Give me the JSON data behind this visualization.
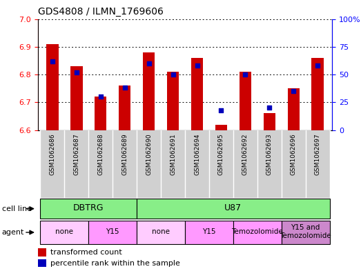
{
  "title": "GDS4808 / ILMN_1769606",
  "samples": [
    "GSM1062686",
    "GSM1062687",
    "GSM1062688",
    "GSM1062689",
    "GSM1062690",
    "GSM1062691",
    "GSM1062694",
    "GSM1062695",
    "GSM1062692",
    "GSM1062693",
    "GSM1062696",
    "GSM1062697"
  ],
  "red_values": [
    6.91,
    6.83,
    6.72,
    6.76,
    6.88,
    6.81,
    6.86,
    6.62,
    6.81,
    6.66,
    6.75,
    6.86
  ],
  "blue_values_pct": [
    62,
    52,
    30,
    38,
    60,
    50,
    58,
    18,
    50,
    20,
    35,
    58
  ],
  "ymin": 6.6,
  "ymax": 7.0,
  "yticks_left": [
    6.6,
    6.7,
    6.8,
    6.9,
    7.0
  ],
  "yticks_right": [
    0,
    25,
    50,
    75,
    100
  ],
  "bar_color": "#cc0000",
  "marker_color": "#0000bb",
  "bar_width": 0.5,
  "cell_line_color": "#88ee88",
  "agent_none_color": "#ffccff",
  "agent_y15_color": "#ff99ff",
  "agent_temo_color": "#ff99ff",
  "agent_combo_color": "#cc88cc",
  "legend_red": "transformed count",
  "legend_blue": "percentile rank within the sample",
  "cell_line_groups": [
    {
      "label": "DBTRG",
      "start": 0,
      "end": 3
    },
    {
      "label": "U87",
      "start": 4,
      "end": 11
    }
  ],
  "agent_groups": [
    {
      "label": "none",
      "start": 0,
      "end": 1,
      "color_key": "agent_none_color"
    },
    {
      "label": "Y15",
      "start": 2,
      "end": 3,
      "color_key": "agent_y15_color"
    },
    {
      "label": "none",
      "start": 4,
      "end": 5,
      "color_key": "agent_none_color"
    },
    {
      "label": "Y15",
      "start": 6,
      "end": 7,
      "color_key": "agent_y15_color"
    },
    {
      "label": "Temozolomide",
      "start": 8,
      "end": 9,
      "color_key": "agent_temo_color"
    },
    {
      "label": "Y15 and\nTemozolomide",
      "start": 10,
      "end": 11,
      "color_key": "agent_combo_color"
    }
  ]
}
